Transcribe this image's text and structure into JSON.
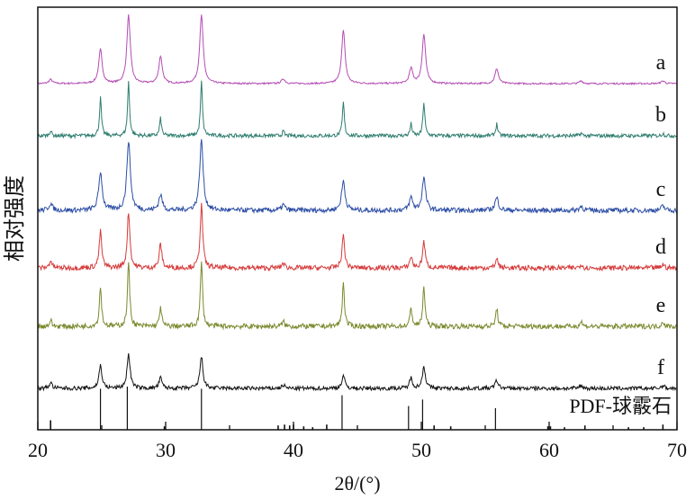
{
  "chart_data": {
    "type": "line",
    "title": "",
    "xlabel": "2θ/(°)",
    "ylabel": "相对强度",
    "xlim": [
      20,
      70
    ],
    "xticks": [
      20,
      30,
      40,
      50,
      60,
      70
    ],
    "grid": false,
    "legend": "none",
    "peaks_2theta": [
      21.0,
      24.9,
      27.1,
      29.6,
      32.8,
      39.2,
      43.9,
      49.2,
      50.2,
      55.9,
      62.5,
      68.9
    ],
    "series": [
      {
        "name": "a",
        "color": "#b44db4",
        "noise": 0.012,
        "intensities": [
          0.06,
          0.5,
          1.0,
          0.4,
          1.0,
          0.07,
          0.78,
          0.22,
          0.72,
          0.22,
          0.04,
          0.04
        ]
      },
      {
        "name": "b",
        "color": "#2e7d6e",
        "noise": 0.035,
        "intensities": [
          0.1,
          0.7,
          1.0,
          0.32,
          1.0,
          0.08,
          0.62,
          0.22,
          0.62,
          0.22,
          0.05,
          0.05
        ]
      },
      {
        "name": "c",
        "color": "#2d4ea6",
        "noise": 0.035,
        "intensities": [
          0.1,
          0.55,
          1.0,
          0.22,
          1.0,
          0.08,
          0.42,
          0.18,
          0.46,
          0.18,
          0.06,
          0.06
        ]
      },
      {
        "name": "d",
        "color": "#d63a3a",
        "noise": 0.04,
        "intensities": [
          0.12,
          0.58,
          0.9,
          0.38,
          1.0,
          0.08,
          0.52,
          0.18,
          0.42,
          0.15,
          0.06,
          0.06
        ]
      },
      {
        "name": "e",
        "color": "#7a8a2e",
        "noise": 0.04,
        "intensities": [
          0.1,
          0.62,
          1.0,
          0.3,
          1.0,
          0.08,
          0.68,
          0.28,
          0.62,
          0.28,
          0.08,
          0.08
        ]
      },
      {
        "name": "f",
        "color": "#111111",
        "noise": 0.035,
        "intensities": [
          0.1,
          0.4,
          0.6,
          0.18,
          0.55,
          0.06,
          0.22,
          0.18,
          0.38,
          0.14,
          0.05,
          0.05
        ]
      }
    ],
    "reference": {
      "label": "PDF-球霰石",
      "lines": [
        [
          21.0,
          0.22
        ],
        [
          24.9,
          0.95
        ],
        [
          27.0,
          1.0
        ],
        [
          29.9,
          0.08
        ],
        [
          32.8,
          0.95
        ],
        [
          38.8,
          0.1
        ],
        [
          39.3,
          0.12
        ],
        [
          39.7,
          0.1
        ],
        [
          40.0,
          0.12
        ],
        [
          40.8,
          0.08
        ],
        [
          41.5,
          0.06
        ],
        [
          42.6,
          0.12
        ],
        [
          43.8,
          0.8
        ],
        [
          49.0,
          0.55
        ],
        [
          50.1,
          0.7
        ],
        [
          51.0,
          0.1
        ],
        [
          52.3,
          0.08
        ],
        [
          55.8,
          0.5
        ],
        [
          59.9,
          0.08
        ],
        [
          60.1,
          0.08
        ],
        [
          61.2,
          0.06
        ],
        [
          62.8,
          0.1
        ],
        [
          66.2,
          0.06
        ],
        [
          67.4,
          0.06
        ],
        [
          68.9,
          0.12
        ]
      ]
    }
  }
}
